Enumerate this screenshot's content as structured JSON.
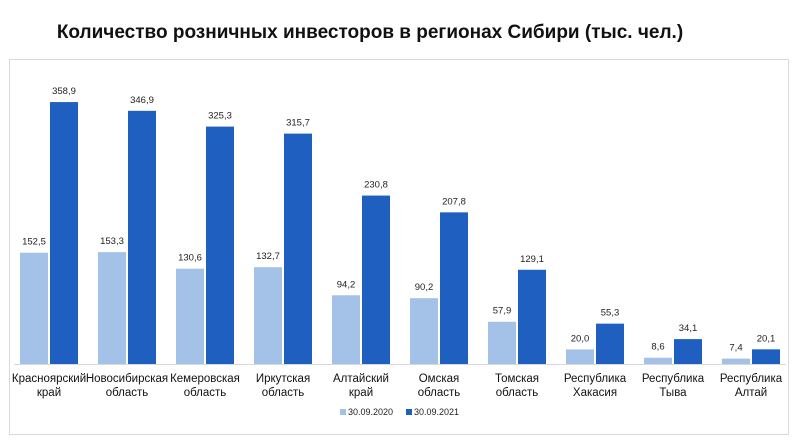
{
  "chart_data": {
    "type": "bar",
    "title": "Количество розничных инвесторов в регионах Сибири (тыс. чел.)",
    "categories": [
      [
        "Красноярский",
        "край"
      ],
      [
        "Новосибирская",
        "область"
      ],
      [
        "Кемеровская",
        "область"
      ],
      [
        "Иркутская",
        "область"
      ],
      [
        "Алтайский",
        "край"
      ],
      [
        "Омская",
        "область"
      ],
      [
        "Томская",
        "область"
      ],
      [
        "Республика",
        "Хакасия"
      ],
      [
        "Республика",
        "Тыва"
      ],
      [
        "Республика",
        "Алтай"
      ]
    ],
    "series": [
      {
        "name": "30.09.2020",
        "color": "#a4c2e8",
        "values": [
          152.5,
          153.3,
          130.6,
          132.7,
          94.2,
          90.2,
          57.9,
          20.0,
          8.6,
          7.4
        ],
        "labels": [
          "152,5",
          "153,3",
          "130,6",
          "132,7",
          "94,2",
          "90,2",
          "57,9",
          "20,0",
          "8,6",
          "7,4"
        ]
      },
      {
        "name": "30.09.2021",
        "color": "#1f5fbf",
        "values": [
          358.9,
          346.9,
          325.3,
          315.7,
          230.8,
          207.8,
          129.1,
          55.3,
          34.1,
          20.1
        ],
        "labels": [
          "358,9",
          "346,9",
          "325,3",
          "315,7",
          "230,8",
          "207,8",
          "129,1",
          "55,3",
          "34,1",
          "20,1"
        ]
      }
    ],
    "ylim": [
      0,
      420
    ],
    "grid": false,
    "legend_position": "bottom"
  }
}
